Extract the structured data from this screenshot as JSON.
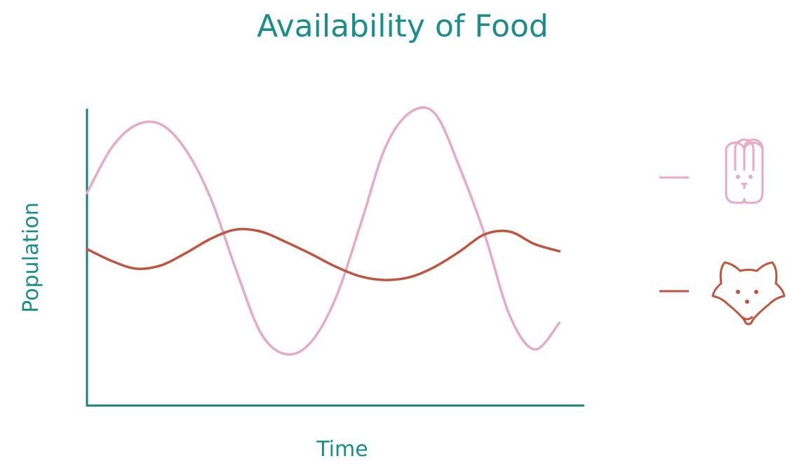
{
  "chart_data": {
    "type": "line",
    "title": "Availability of Food",
    "x_label": "Time",
    "y_label": "Population",
    "x": [
      0,
      5,
      10,
      15,
      20,
      25,
      30,
      35,
      40,
      45,
      50,
      55,
      60,
      65,
      70,
      75,
      80,
      85,
      90,
      95,
      100
    ],
    "xlim": [
      0,
      100
    ],
    "ylim": [
      0,
      100
    ],
    "series": [
      {
        "color": "#e8a9c4",
        "values": [
          71.6,
          87.0,
          94.6,
          94.6,
          85.8,
          69.3,
          45.6,
          24.3,
          17.3,
          21.3,
          36.2,
          61.0,
          87.0,
          98.8,
          98.3,
          79.9,
          57.4,
          30.3,
          18.9,
          27.9,
          null
        ]
      },
      {
        "color": "#c0553f",
        "values": [
          52.7,
          48.7,
          46.1,
          47.3,
          51.5,
          56.3,
          59.3,
          58.6,
          55.1,
          51.1,
          46.8,
          43.5,
          42.3,
          43.3,
          46.8,
          52.0,
          57.7,
          58.6,
          54.4,
          52.0,
          null
        ]
      }
    ],
    "axis_color": "#1b7f7b",
    "grid": false
  }
}
